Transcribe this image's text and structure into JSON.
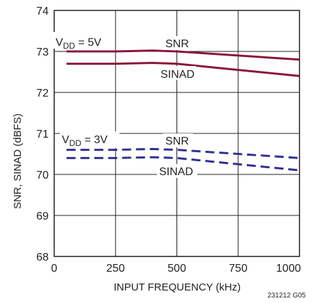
{
  "chart_data": {
    "type": "line",
    "xlabel": "INPUT FREQUENCY (kHz)",
    "ylabel": "SNR, SINAD (dBFS)",
    "xlim": [
      0,
      1000
    ],
    "ylim": [
      68,
      74
    ],
    "xticks": [
      0,
      250,
      500,
      750,
      1000
    ],
    "yticks": [
      68,
      69,
      70,
      71,
      72,
      73,
      74
    ],
    "grid": true,
    "series": [
      {
        "name": "SNR",
        "group": "VDD = 5V",
        "style": "solid",
        "color": "#8b1538",
        "x": [
          50,
          250,
          400,
          500,
          750,
          1000
        ],
        "y": [
          73.0,
          73.0,
          73.02,
          73.0,
          72.9,
          72.8
        ]
      },
      {
        "name": "SINAD",
        "group": "VDD = 5V",
        "style": "solid",
        "color": "#8b1538",
        "x": [
          50,
          250,
          400,
          500,
          750,
          1000
        ],
        "y": [
          72.7,
          72.7,
          72.72,
          72.7,
          72.55,
          72.4
        ]
      },
      {
        "name": "SNR",
        "group": "VDD = 3V",
        "style": "dashed",
        "color": "#2e3192",
        "x": [
          50,
          250,
          400,
          500,
          750,
          1000
        ],
        "y": [
          70.6,
          70.6,
          70.62,
          70.6,
          70.5,
          70.4
        ]
      },
      {
        "name": "SINAD",
        "group": "VDD = 3V",
        "style": "dashed",
        "color": "#2e3192",
        "x": [
          50,
          250,
          400,
          500,
          750,
          1000
        ],
        "y": [
          70.4,
          70.4,
          70.42,
          70.4,
          70.25,
          70.1
        ]
      }
    ],
    "annotations": {
      "vdd5_main": "V",
      "vdd5_sub": "DD",
      "vdd5_rest": " = 5V",
      "vdd3_main": "V",
      "vdd3_sub": "DD",
      "vdd3_rest": " = 3V",
      "snr_5v": "SNR",
      "sinad_5v": "SINAD",
      "snr_3v": "SNR",
      "sinad_3v": "SINAD"
    },
    "figure_code": "231212 G05"
  }
}
